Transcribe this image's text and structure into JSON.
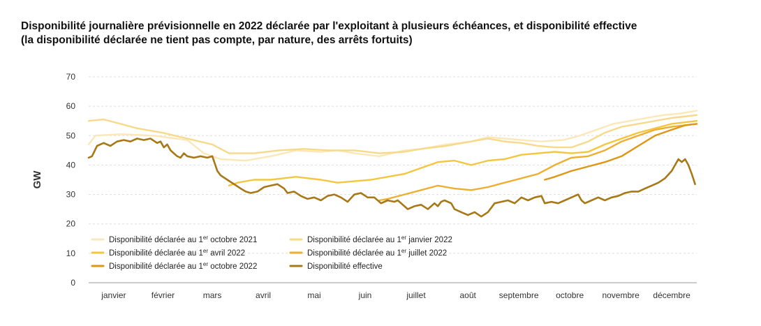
{
  "title_line1": "Disponibilité journalière prévisionnelle en 2022 déclarée par l'exploitant à plusieurs échéances, et disponibilité effective",
  "title_line2": "(la disponibilité déclarée ne tient pas compte, par nature, des arrêts fortuits)",
  "chart_data": {
    "type": "line",
    "title": "Disponibilité journalière prévisionnelle en 2022 déclarée par l'exploitant à plusieurs échéances, et disponibilité effective (la disponibilité déclarée ne tient pas compte, par nature, des arrêts fortuits)",
    "ylabel": "GW",
    "xlabel": "",
    "ylim": [
      0,
      70
    ],
    "yticks": [
      0,
      10,
      20,
      30,
      40,
      50,
      60,
      70
    ],
    "grid": true,
    "legend_position": "bottom-left",
    "months": [
      "janvier",
      "février",
      "mars",
      "avril",
      "mai",
      "juin",
      "juillet",
      "août",
      "septembre",
      "octobre",
      "novembre",
      "décembre"
    ],
    "x_unit": "day of year 2022",
    "series": [
      {
        "name_parts": [
          "Disponibilité déclarée au 1",
          "er",
          " octobre 2021"
        ],
        "color": "#fbe7b8",
        "points": [
          [
            1,
            47
          ],
          [
            5,
            50
          ],
          [
            20,
            50.5
          ],
          [
            40,
            50
          ],
          [
            60,
            48.5
          ],
          [
            70,
            44
          ],
          [
            80,
            42
          ],
          [
            95,
            41.5
          ],
          [
            110,
            43
          ],
          [
            125,
            45
          ],
          [
            140,
            44.5
          ],
          [
            150,
            45
          ],
          [
            160,
            44
          ],
          [
            175,
            43
          ],
          [
            190,
            45
          ],
          [
            200,
            45.5
          ],
          [
            215,
            47
          ],
          [
            230,
            48
          ],
          [
            240,
            49.5
          ],
          [
            250,
            49
          ],
          [
            260,
            48.5
          ],
          [
            272,
            48
          ],
          [
            285,
            48.5
          ],
          [
            295,
            50
          ],
          [
            305,
            52
          ],
          [
            315,
            54
          ],
          [
            325,
            55
          ],
          [
            335,
            56
          ],
          [
            345,
            57
          ],
          [
            355,
            57.5
          ],
          [
            365,
            58.5
          ]
        ]
      },
      {
        "name_parts": [
          "Disponibilité déclarée au 1",
          "er",
          " janvier 2022"
        ],
        "color": "#f7d98a",
        "points": [
          [
            1,
            55
          ],
          [
            10,
            55.5
          ],
          [
            20,
            54
          ],
          [
            30,
            52.5
          ],
          [
            45,
            51
          ],
          [
            60,
            49
          ],
          [
            75,
            47
          ],
          [
            85,
            44
          ],
          [
            100,
            44
          ],
          [
            115,
            45
          ],
          [
            130,
            45.5
          ],
          [
            145,
            45
          ],
          [
            160,
            45
          ],
          [
            175,
            44
          ],
          [
            190,
            44.5
          ],
          [
            200,
            45.5
          ],
          [
            215,
            46.5
          ],
          [
            230,
            48
          ],
          [
            240,
            49
          ],
          [
            250,
            48
          ],
          [
            260,
            47.5
          ],
          [
            270,
            46.5
          ],
          [
            280,
            46
          ],
          [
            290,
            46
          ],
          [
            300,
            48
          ],
          [
            310,
            51
          ],
          [
            320,
            53
          ],
          [
            330,
            54
          ],
          [
            340,
            55
          ],
          [
            350,
            56
          ],
          [
            365,
            57
          ]
        ]
      },
      {
        "name_parts": [
          "Disponibilité déclarée au 1",
          "er",
          " avril 2022"
        ],
        "color": "#f3c640",
        "points": [
          [
            85,
            33
          ],
          [
            90,
            34
          ],
          [
            100,
            35
          ],
          [
            110,
            35
          ],
          [
            125,
            36
          ],
          [
            140,
            35
          ],
          [
            150,
            34
          ],
          [
            160,
            34.5
          ],
          [
            170,
            35
          ],
          [
            180,
            36
          ],
          [
            190,
            37
          ],
          [
            200,
            39
          ],
          [
            210,
            41
          ],
          [
            220,
            41.5
          ],
          [
            230,
            40
          ],
          [
            240,
            41.5
          ],
          [
            250,
            42
          ],
          [
            260,
            43.5
          ],
          [
            270,
            44
          ],
          [
            280,
            44.5
          ],
          [
            290,
            44
          ],
          [
            300,
            44.5
          ],
          [
            310,
            47
          ],
          [
            320,
            49
          ],
          [
            330,
            51
          ],
          [
            340,
            52.5
          ],
          [
            350,
            54
          ],
          [
            365,
            55
          ]
        ]
      },
      {
        "name_parts": [
          "Disponibilité déclarée au 1",
          "er",
          " juillet 2022"
        ],
        "color": "#edae32",
        "points": [
          [
            175,
            28
          ],
          [
            180,
            28.5
          ],
          [
            190,
            30
          ],
          [
            200,
            31.5
          ],
          [
            210,
            33
          ],
          [
            220,
            32
          ],
          [
            230,
            31.5
          ],
          [
            240,
            32.5
          ],
          [
            250,
            34
          ],
          [
            260,
            35.5
          ],
          [
            270,
            37
          ],
          [
            280,
            40
          ],
          [
            290,
            42.5
          ],
          [
            300,
            43
          ],
          [
            310,
            45
          ],
          [
            320,
            48
          ],
          [
            330,
            50
          ],
          [
            340,
            52
          ],
          [
            350,
            53
          ],
          [
            365,
            54
          ]
        ]
      },
      {
        "name_parts": [
          "Disponibilité déclarée au 1",
          "er",
          " octobre 2022"
        ],
        "color": "#de9613",
        "points": [
          [
            274,
            35
          ],
          [
            280,
            36
          ],
          [
            290,
            38
          ],
          [
            300,
            39.5
          ],
          [
            310,
            41
          ],
          [
            320,
            43
          ],
          [
            330,
            46.5
          ],
          [
            340,
            50
          ],
          [
            350,
            52
          ],
          [
            358,
            53.5
          ],
          [
            365,
            54
          ]
        ]
      },
      {
        "name_parts": [
          "Disponibilité effective",
          "",
          ""
        ],
        "color": "#a87817",
        "points": [
          [
            1,
            42.5
          ],
          [
            3,
            43
          ],
          [
            6,
            46.5
          ],
          [
            10,
            47.5
          ],
          [
            14,
            46.5
          ],
          [
            18,
            48
          ],
          [
            22,
            48.5
          ],
          [
            26,
            48
          ],
          [
            30,
            49
          ],
          [
            34,
            48.5
          ],
          [
            38,
            49
          ],
          [
            42,
            47.5
          ],
          [
            44,
            48
          ],
          [
            46,
            46
          ],
          [
            48,
            47
          ],
          [
            50,
            45
          ],
          [
            52,
            44
          ],
          [
            54,
            43
          ],
          [
            56,
            42.5
          ],
          [
            58,
            44
          ],
          [
            60,
            43
          ],
          [
            64,
            42.5
          ],
          [
            68,
            43
          ],
          [
            72,
            42.5
          ],
          [
            75,
            43
          ],
          [
            78,
            38
          ],
          [
            80,
            36.5
          ],
          [
            84,
            35
          ],
          [
            88,
            33.5
          ],
          [
            92,
            32
          ],
          [
            95,
            31
          ],
          [
            98,
            30.5
          ],
          [
            102,
            31
          ],
          [
            106,
            32.5
          ],
          [
            110,
            33
          ],
          [
            114,
            33.5
          ],
          [
            118,
            32
          ],
          [
            120,
            30.5
          ],
          [
            124,
            31
          ],
          [
            128,
            29.5
          ],
          [
            132,
            28.5
          ],
          [
            136,
            29
          ],
          [
            140,
            28
          ],
          [
            144,
            29.5
          ],
          [
            148,
            30
          ],
          [
            152,
            29
          ],
          [
            156,
            27.5
          ],
          [
            160,
            30
          ],
          [
            164,
            30.5
          ],
          [
            168,
            29
          ],
          [
            172,
            29
          ],
          [
            176,
            27
          ],
          [
            180,
            28
          ],
          [
            184,
            27.5
          ],
          [
            186,
            28
          ],
          [
            188,
            27
          ],
          [
            190,
            26
          ],
          [
            192,
            25
          ],
          [
            196,
            26
          ],
          [
            200,
            26.5
          ],
          [
            204,
            25
          ],
          [
            208,
            27
          ],
          [
            210,
            26
          ],
          [
            212,
            27.5
          ],
          [
            214,
            28
          ],
          [
            218,
            27
          ],
          [
            220,
            25
          ],
          [
            224,
            24
          ],
          [
            228,
            23
          ],
          [
            232,
            24
          ],
          [
            236,
            22.5
          ],
          [
            240,
            24
          ],
          [
            244,
            27
          ],
          [
            248,
            27.5
          ],
          [
            252,
            28
          ],
          [
            256,
            27
          ],
          [
            260,
            29
          ],
          [
            264,
            28
          ],
          [
            268,
            29
          ],
          [
            272,
            29.5
          ],
          [
            274,
            27
          ],
          [
            278,
            27.5
          ],
          [
            282,
            27
          ],
          [
            286,
            28
          ],
          [
            290,
            29
          ],
          [
            294,
            30
          ],
          [
            296,
            28
          ],
          [
            298,
            27
          ],
          [
            302,
            28
          ],
          [
            306,
            29
          ],
          [
            310,
            28
          ],
          [
            314,
            29
          ],
          [
            318,
            29.5
          ],
          [
            322,
            30.5
          ],
          [
            326,
            31
          ],
          [
            330,
            31
          ],
          [
            334,
            32
          ],
          [
            338,
            33
          ],
          [
            342,
            34
          ],
          [
            346,
            35.5
          ],
          [
            350,
            38
          ],
          [
            352,
            40
          ],
          [
            354,
            42
          ],
          [
            356,
            41
          ],
          [
            358,
            42
          ],
          [
            360,
            40
          ],
          [
            362,
            37
          ],
          [
            364,
            33.5
          ]
        ]
      }
    ]
  }
}
